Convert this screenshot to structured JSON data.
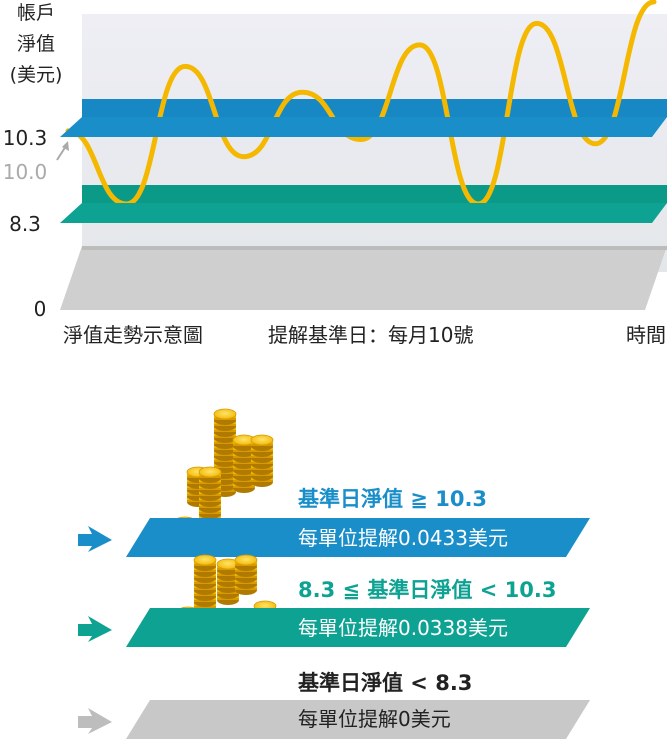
{
  "chart": {
    "ylabel_lines": [
      "帳戶",
      "淨值",
      "(美元)"
    ],
    "y_ticks": [
      {
        "label": "10.3",
        "value": 10.3
      },
      {
        "label": "10.0",
        "value": 10.0
      },
      {
        "label": "8.3",
        "value": 8.3
      },
      {
        "label": "0",
        "value": 0
      }
    ],
    "caption_left": "淨值走勢示意圖",
    "caption_right": "提解基準日：每月10號",
    "xlabel": "時間"
  },
  "chart_data": {
    "type": "line",
    "title": "",
    "xlabel": "時間",
    "ylabel": "帳戶淨值(美元)",
    "thresholds": [
      10.3,
      8.3
    ],
    "start_value": 10.0,
    "series": [
      {
        "name": "",
        "color": "#f5b800",
        "x": [
          0,
          1,
          2,
          3,
          4,
          5,
          6,
          7,
          8,
          9,
          10
        ],
        "values": [
          10.0,
          8.3,
          11.5,
          9.4,
          10.9,
          9.8,
          12.0,
          8.3,
          12.5,
          9.7,
          13.0
        ]
      }
    ]
  },
  "tiers": [
    {
      "condition": "基準日淨值 ≧ 10.3",
      "payout": "每單位提解0.0433美元",
      "color": "#1a8ec9",
      "text_color": "#1a8ec9",
      "arrow_color": "#1a8ec9",
      "coin_stack_heights": [
        3,
        5,
        13,
        8,
        11,
        7,
        2
      ]
    },
    {
      "condition": "8.3 ≦ 基準日淨值 < 10.3",
      "payout": "每單位提解0.0338美元",
      "color": "#0ea293",
      "text_color": "#0ea293",
      "arrow_color": "#0ea293",
      "coin_stack_heights": [
        3,
        8,
        6,
        5,
        2,
        4
      ]
    },
    {
      "condition": "基準日淨值 < 8.3",
      "payout": "每單位提解0美元",
      "color": "#c8c8c8",
      "text_color": "#222222",
      "arrow_color": "#bdbdbd",
      "coin_stack_heights": []
    }
  ],
  "colors": {
    "coin": "#f2c200",
    "coin_dark": "#d89a00",
    "coin_edge": "#b07a00"
  }
}
